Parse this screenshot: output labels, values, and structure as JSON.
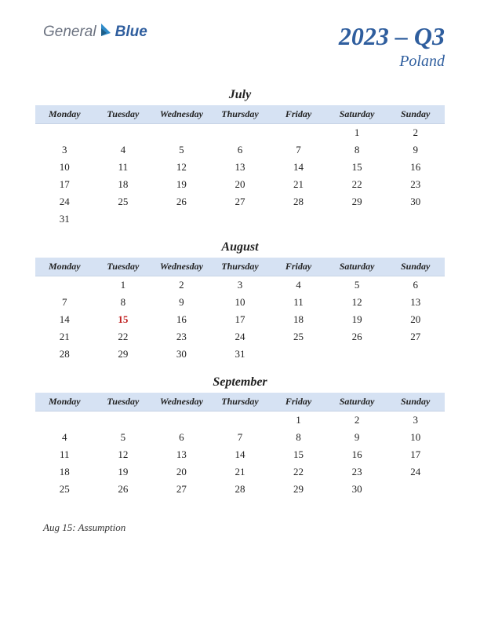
{
  "brand": {
    "part1": "General",
    "part2": "Blue"
  },
  "title": "2023 – Q3",
  "country": "Poland",
  "colors": {
    "accent": "#2f5e9e",
    "header_bg": "#d6e2f3",
    "holiday": "#c02020",
    "text": "#222222",
    "background": "#ffffff"
  },
  "day_headers": [
    "Monday",
    "Tuesday",
    "Wednesday",
    "Thursday",
    "Friday",
    "Saturday",
    "Sunday"
  ],
  "months": [
    {
      "name": "July",
      "weeks": [
        [
          "",
          "",
          "",
          "",
          "",
          "1",
          "2"
        ],
        [
          "3",
          "4",
          "5",
          "6",
          "7",
          "8",
          "9"
        ],
        [
          "10",
          "11",
          "12",
          "13",
          "14",
          "15",
          "16"
        ],
        [
          "17",
          "18",
          "19",
          "20",
          "21",
          "22",
          "23"
        ],
        [
          "24",
          "25",
          "26",
          "27",
          "28",
          "29",
          "30"
        ],
        [
          "31",
          "",
          "",
          "",
          "",
          "",
          ""
        ]
      ],
      "holidays": []
    },
    {
      "name": "August",
      "weeks": [
        [
          "",
          "1",
          "2",
          "3",
          "4",
          "5",
          "6"
        ],
        [
          "7",
          "8",
          "9",
          "10",
          "11",
          "12",
          "13"
        ],
        [
          "14",
          "15",
          "16",
          "17",
          "18",
          "19",
          "20"
        ],
        [
          "21",
          "22",
          "23",
          "24",
          "25",
          "26",
          "27"
        ],
        [
          "28",
          "29",
          "30",
          "31",
          "",
          "",
          ""
        ]
      ],
      "holidays": [
        "15"
      ]
    },
    {
      "name": "September",
      "weeks": [
        [
          "",
          "",
          "",
          "",
          "1",
          "2",
          "3"
        ],
        [
          "4",
          "5",
          "6",
          "7",
          "8",
          "9",
          "10"
        ],
        [
          "11",
          "12",
          "13",
          "14",
          "15",
          "16",
          "17"
        ],
        [
          "18",
          "19",
          "20",
          "21",
          "22",
          "23",
          "24"
        ],
        [
          "25",
          "26",
          "27",
          "28",
          "29",
          "30",
          ""
        ]
      ],
      "holidays": []
    }
  ],
  "notes": [
    "Aug 15: Assumption"
  ]
}
